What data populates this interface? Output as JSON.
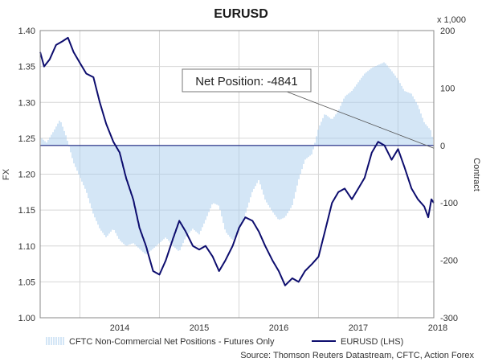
{
  "chart_data": {
    "type": "bar+line",
    "title": "EURUSD",
    "left_axis": {
      "label": "FX",
      "range": [
        1.0,
        1.4
      ],
      "ticks": [
        "1.00",
        "1.05",
        "1.10",
        "1.15",
        "1.20",
        "1.25",
        "1.30",
        "1.35",
        "1.40"
      ]
    },
    "right_axis": {
      "label": "Contract",
      "unit": "x 1,000",
      "range": [
        -300,
        200
      ],
      "ticks": [
        "-300",
        "-200",
        "-100",
        "0",
        "100",
        "200"
      ]
    },
    "x_axis": {
      "ticks": [
        "2014",
        "2015",
        "2016",
        "2017",
        "2018"
      ],
      "range": [
        2013.5,
        2018.45
      ]
    },
    "grid": true,
    "legend_position": "bottom",
    "annotation": {
      "text": "Net Position: -4841",
      "points_to": {
        "x": 2018.45,
        "y": -4.8
      }
    },
    "series": [
      {
        "name": "CFTC Non-Commercial Net Positions - Futures Only",
        "kind": "bar",
        "axis": "right",
        "color": "#a9cdee",
        "points": [
          [
            2013.5,
            15
          ],
          [
            2013.58,
            5
          ],
          [
            2013.67,
            25
          ],
          [
            2013.75,
            45
          ],
          [
            2013.83,
            15
          ],
          [
            2013.92,
            -30
          ],
          [
            2014.0,
            -55
          ],
          [
            2014.08,
            -80
          ],
          [
            2014.17,
            -120
          ],
          [
            2014.25,
            -145
          ],
          [
            2014.33,
            -160
          ],
          [
            2014.42,
            -145
          ],
          [
            2014.5,
            -165
          ],
          [
            2014.58,
            -175
          ],
          [
            2014.67,
            -170
          ],
          [
            2014.75,
            -180
          ],
          [
            2014.83,
            -190
          ],
          [
            2014.92,
            -180
          ],
          [
            2015.0,
            -170
          ],
          [
            2015.08,
            -160
          ],
          [
            2015.17,
            -175
          ],
          [
            2015.25,
            -185
          ],
          [
            2015.33,
            -160
          ],
          [
            2015.42,
            -145
          ],
          [
            2015.5,
            -155
          ],
          [
            2015.58,
            -130
          ],
          [
            2015.67,
            -100
          ],
          [
            2015.75,
            -105
          ],
          [
            2015.83,
            -150
          ],
          [
            2015.92,
            -165
          ],
          [
            2016.0,
            -150
          ],
          [
            2016.08,
            -120
          ],
          [
            2016.17,
            -80
          ],
          [
            2016.25,
            -60
          ],
          [
            2016.33,
            -95
          ],
          [
            2016.42,
            -115
          ],
          [
            2016.5,
            -130
          ],
          [
            2016.58,
            -125
          ],
          [
            2016.67,
            -105
          ],
          [
            2016.75,
            -60
          ],
          [
            2016.83,
            -25
          ],
          [
            2016.92,
            -15
          ],
          [
            2017.0,
            30
          ],
          [
            2017.08,
            55
          ],
          [
            2017.17,
            45
          ],
          [
            2017.25,
            60
          ],
          [
            2017.33,
            85
          ],
          [
            2017.42,
            95
          ],
          [
            2017.5,
            110
          ],
          [
            2017.58,
            125
          ],
          [
            2017.67,
            135
          ],
          [
            2017.75,
            140
          ],
          [
            2017.83,
            145
          ],
          [
            2017.92,
            130
          ],
          [
            2018.0,
            115
          ],
          [
            2018.08,
            95
          ],
          [
            2018.17,
            90
          ],
          [
            2018.25,
            70
          ],
          [
            2018.33,
            40
          ],
          [
            2018.42,
            25
          ],
          [
            2018.45,
            -5
          ]
        ]
      },
      {
        "name": "EURUSD (LHS)",
        "kind": "line",
        "axis": "left",
        "color": "#0d0d6e",
        "points": [
          [
            2013.5,
            1.37
          ],
          [
            2013.55,
            1.35
          ],
          [
            2013.62,
            1.36
          ],
          [
            2013.7,
            1.38
          ],
          [
            2013.78,
            1.385
          ],
          [
            2013.85,
            1.39
          ],
          [
            2013.92,
            1.37
          ],
          [
            2014.0,
            1.355
          ],
          [
            2014.08,
            1.34
          ],
          [
            2014.17,
            1.335
          ],
          [
            2014.25,
            1.3
          ],
          [
            2014.33,
            1.27
          ],
          [
            2014.42,
            1.245
          ],
          [
            2014.5,
            1.23
          ],
          [
            2014.58,
            1.195
          ],
          [
            2014.67,
            1.165
          ],
          [
            2014.75,
            1.125
          ],
          [
            2014.83,
            1.1
          ],
          [
            2014.92,
            1.065
          ],
          [
            2015.0,
            1.06
          ],
          [
            2015.08,
            1.08
          ],
          [
            2015.17,
            1.11
          ],
          [
            2015.25,
            1.135
          ],
          [
            2015.33,
            1.12
          ],
          [
            2015.42,
            1.1
          ],
          [
            2015.5,
            1.095
          ],
          [
            2015.58,
            1.1
          ],
          [
            2015.67,
            1.085
          ],
          [
            2015.75,
            1.065
          ],
          [
            2015.83,
            1.08
          ],
          [
            2015.92,
            1.1
          ],
          [
            2016.0,
            1.125
          ],
          [
            2016.08,
            1.14
          ],
          [
            2016.17,
            1.135
          ],
          [
            2016.25,
            1.12
          ],
          [
            2016.33,
            1.1
          ],
          [
            2016.42,
            1.08
          ],
          [
            2016.5,
            1.065
          ],
          [
            2016.58,
            1.045
          ],
          [
            2016.67,
            1.055
          ],
          [
            2016.75,
            1.05
          ],
          [
            2016.83,
            1.065
          ],
          [
            2016.92,
            1.075
          ],
          [
            2017.0,
            1.085
          ],
          [
            2017.08,
            1.12
          ],
          [
            2017.17,
            1.16
          ],
          [
            2017.25,
            1.175
          ],
          [
            2017.33,
            1.18
          ],
          [
            2017.42,
            1.165
          ],
          [
            2017.5,
            1.18
          ],
          [
            2017.58,
            1.195
          ],
          [
            2017.67,
            1.23
          ],
          [
            2017.75,
            1.245
          ],
          [
            2017.83,
            1.24
          ],
          [
            2017.92,
            1.22
          ],
          [
            2018.0,
            1.235
          ],
          [
            2018.08,
            1.21
          ],
          [
            2018.17,
            1.18
          ],
          [
            2018.25,
            1.165
          ],
          [
            2018.33,
            1.155
          ],
          [
            2018.38,
            1.14
          ],
          [
            2018.42,
            1.165
          ],
          [
            2018.45,
            1.16
          ]
        ]
      }
    ],
    "source": "Source: Thomson Reuters Datastream, CFTC, Action Forex"
  }
}
